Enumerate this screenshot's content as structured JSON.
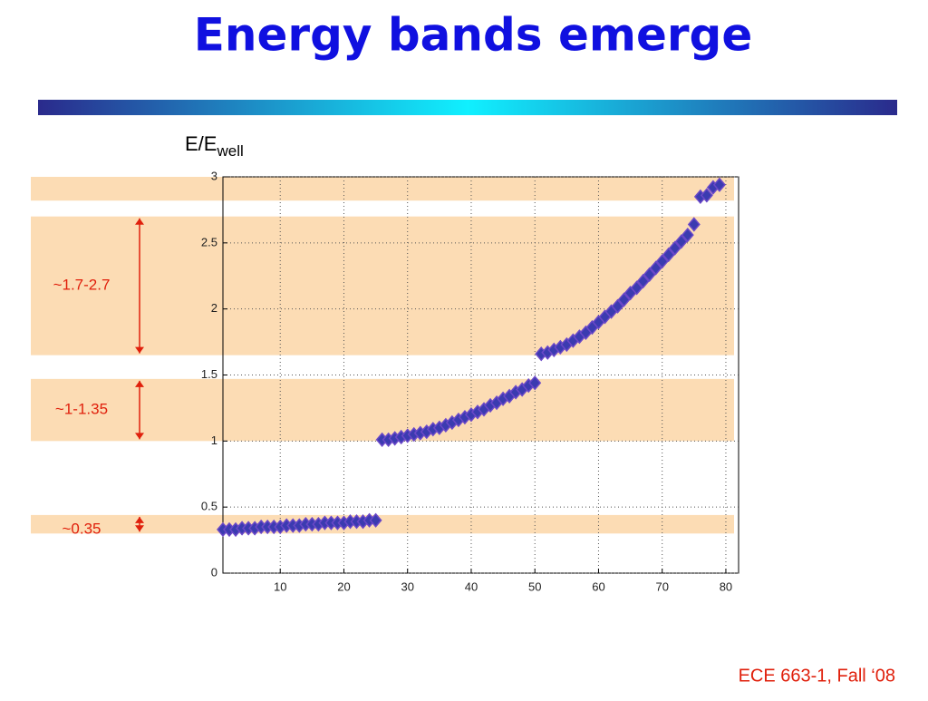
{
  "chart_data": {
    "type": "scatter",
    "title": "Energy bands emerge",
    "y_label": "E/E",
    "y_label_sub": "well",
    "footer": "ECE 663-1, Fall ‘08",
    "x": [
      1,
      2,
      3,
      4,
      5,
      6,
      7,
      8,
      9,
      10,
      11,
      12,
      13,
      14,
      15,
      16,
      17,
      18,
      19,
      20,
      21,
      22,
      23,
      24,
      25,
      26,
      27,
      28,
      29,
      30,
      31,
      32,
      33,
      34,
      35,
      36,
      37,
      38,
      39,
      40,
      41,
      42,
      43,
      44,
      45,
      46,
      47,
      48,
      49,
      50,
      51,
      52,
      53,
      54,
      55,
      56,
      57,
      58,
      59,
      60,
      61,
      62,
      63,
      64,
      65,
      66,
      67,
      68,
      69,
      70,
      71,
      72,
      73,
      74,
      75,
      76,
      77,
      78,
      79
    ],
    "series": [
      {
        "name": "E/Ewell",
        "color": "#3b3bb0",
        "values": [
          0.33,
          0.33,
          0.33,
          0.34,
          0.34,
          0.34,
          0.35,
          0.35,
          0.35,
          0.35,
          0.36,
          0.36,
          0.36,
          0.37,
          0.37,
          0.37,
          0.38,
          0.38,
          0.38,
          0.38,
          0.39,
          0.39,
          0.39,
          0.4,
          0.4,
          1.01,
          1.01,
          1.02,
          1.03,
          1.04,
          1.05,
          1.06,
          1.07,
          1.09,
          1.1,
          1.12,
          1.14,
          1.16,
          1.18,
          1.2,
          1.22,
          1.24,
          1.27,
          1.29,
          1.32,
          1.34,
          1.37,
          1.39,
          1.42,
          1.44,
          1.66,
          1.67,
          1.69,
          1.71,
          1.73,
          1.76,
          1.79,
          1.82,
          1.86,
          1.9,
          1.94,
          1.98,
          2.02,
          2.07,
          2.12,
          2.16,
          2.21,
          2.26,
          2.31,
          2.36,
          2.41,
          2.46,
          2.51,
          2.56,
          2.64,
          2.85,
          2.86,
          2.92,
          2.94
        ]
      }
    ],
    "xlim": [
      1,
      82
    ],
    "ylim": [
      0,
      3
    ],
    "xticks": [
      10,
      20,
      30,
      40,
      50,
      60,
      70,
      80
    ],
    "yticks": [
      0,
      0.5,
      1,
      1.5,
      2,
      2.5,
      3
    ],
    "grid": true,
    "bands": [
      [
        0.3,
        0.44
      ],
      [
        1.0,
        1.47
      ],
      [
        1.65,
        2.7
      ],
      [
        2.82,
        3.0
      ]
    ],
    "band_color": "#fcdcb4",
    "annotations": [
      {
        "text": "~1.7-2.7",
        "band": 2
      },
      {
        "text": "~1-1.35",
        "band": 1
      },
      {
        "text": "~0.35",
        "band": 0
      }
    ],
    "annotation_color": "#e0200c"
  }
}
